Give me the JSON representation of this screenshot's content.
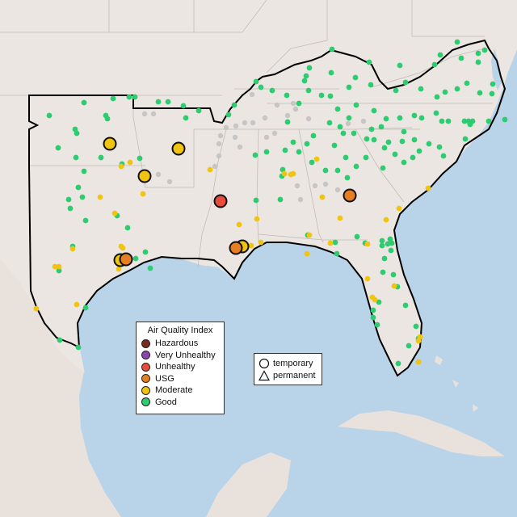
{
  "legend": {
    "title": "Air Quality Index",
    "categories": [
      {
        "label": "Hazardous",
        "color": "#7b2a1e"
      },
      {
        "label": "Very Unhealthy",
        "color": "#8e44ad"
      },
      {
        "label": "Unhealthy",
        "color": "#e74c3c"
      },
      {
        "label": "USG",
        "color": "#e67e22"
      },
      {
        "label": "Moderate",
        "color": "#f1c40f"
      },
      {
        "label": "Good",
        "color": "#2ecc71"
      }
    ]
  },
  "shape_legend": {
    "temporary_label": "temporary",
    "permanent_label": "permanent"
  },
  "colors": {
    "water": "#b9d3e8",
    "land": "#ece6e2",
    "border": "#c2bcb8",
    "no_data": "#c6c6c6",
    "region_outline": "#000000"
  }
}
